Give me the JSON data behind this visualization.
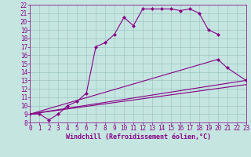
{
  "xlabel": "Windchill (Refroidissement éolien,°C)",
  "background_color": "#c5e5e0",
  "grid_color": "#9ec8c4",
  "line_color": "#880088",
  "xlim": [
    0,
    23
  ],
  "ylim": [
    8,
    22
  ],
  "xticks": [
    0,
    1,
    2,
    3,
    4,
    5,
    6,
    7,
    8,
    9,
    10,
    11,
    12,
    13,
    14,
    15,
    16,
    17,
    18,
    19,
    20,
    21,
    22,
    23
  ],
  "yticks": [
    8,
    9,
    10,
    11,
    12,
    13,
    14,
    15,
    16,
    17,
    18,
    19,
    20,
    21,
    22
  ],
  "curve1_x": [
    0,
    1,
    2,
    3,
    4,
    5,
    6,
    7,
    8,
    9,
    10,
    11,
    12,
    13,
    14,
    15,
    16,
    17,
    18,
    19,
    20
  ],
  "curve1_y": [
    9.0,
    9.0,
    8.3,
    9.0,
    10.0,
    10.5,
    11.5,
    17.0,
    17.5,
    18.5,
    20.5,
    19.5,
    21.5,
    21.5,
    21.5,
    21.5,
    21.3,
    21.5,
    21.0,
    19.0,
    18.5
  ],
  "fan_line1_x": [
    0,
    23
  ],
  "fan_line1_y": [
    9.0,
    13.0
  ],
  "fan_line2_x": [
    0,
    23
  ],
  "fan_line2_y": [
    9.0,
    12.5
  ],
  "fan_line3_x": [
    0,
    20,
    21,
    23
  ],
  "fan_line3_y": [
    9.0,
    15.5,
    14.5,
    13.0
  ],
  "fan_line4_x": [
    0,
    23
  ],
  "fan_line4_y": [
    9.0,
    12.5
  ],
  "tick_fontsize": 5.5,
  "xlabel_fontsize": 6.0
}
